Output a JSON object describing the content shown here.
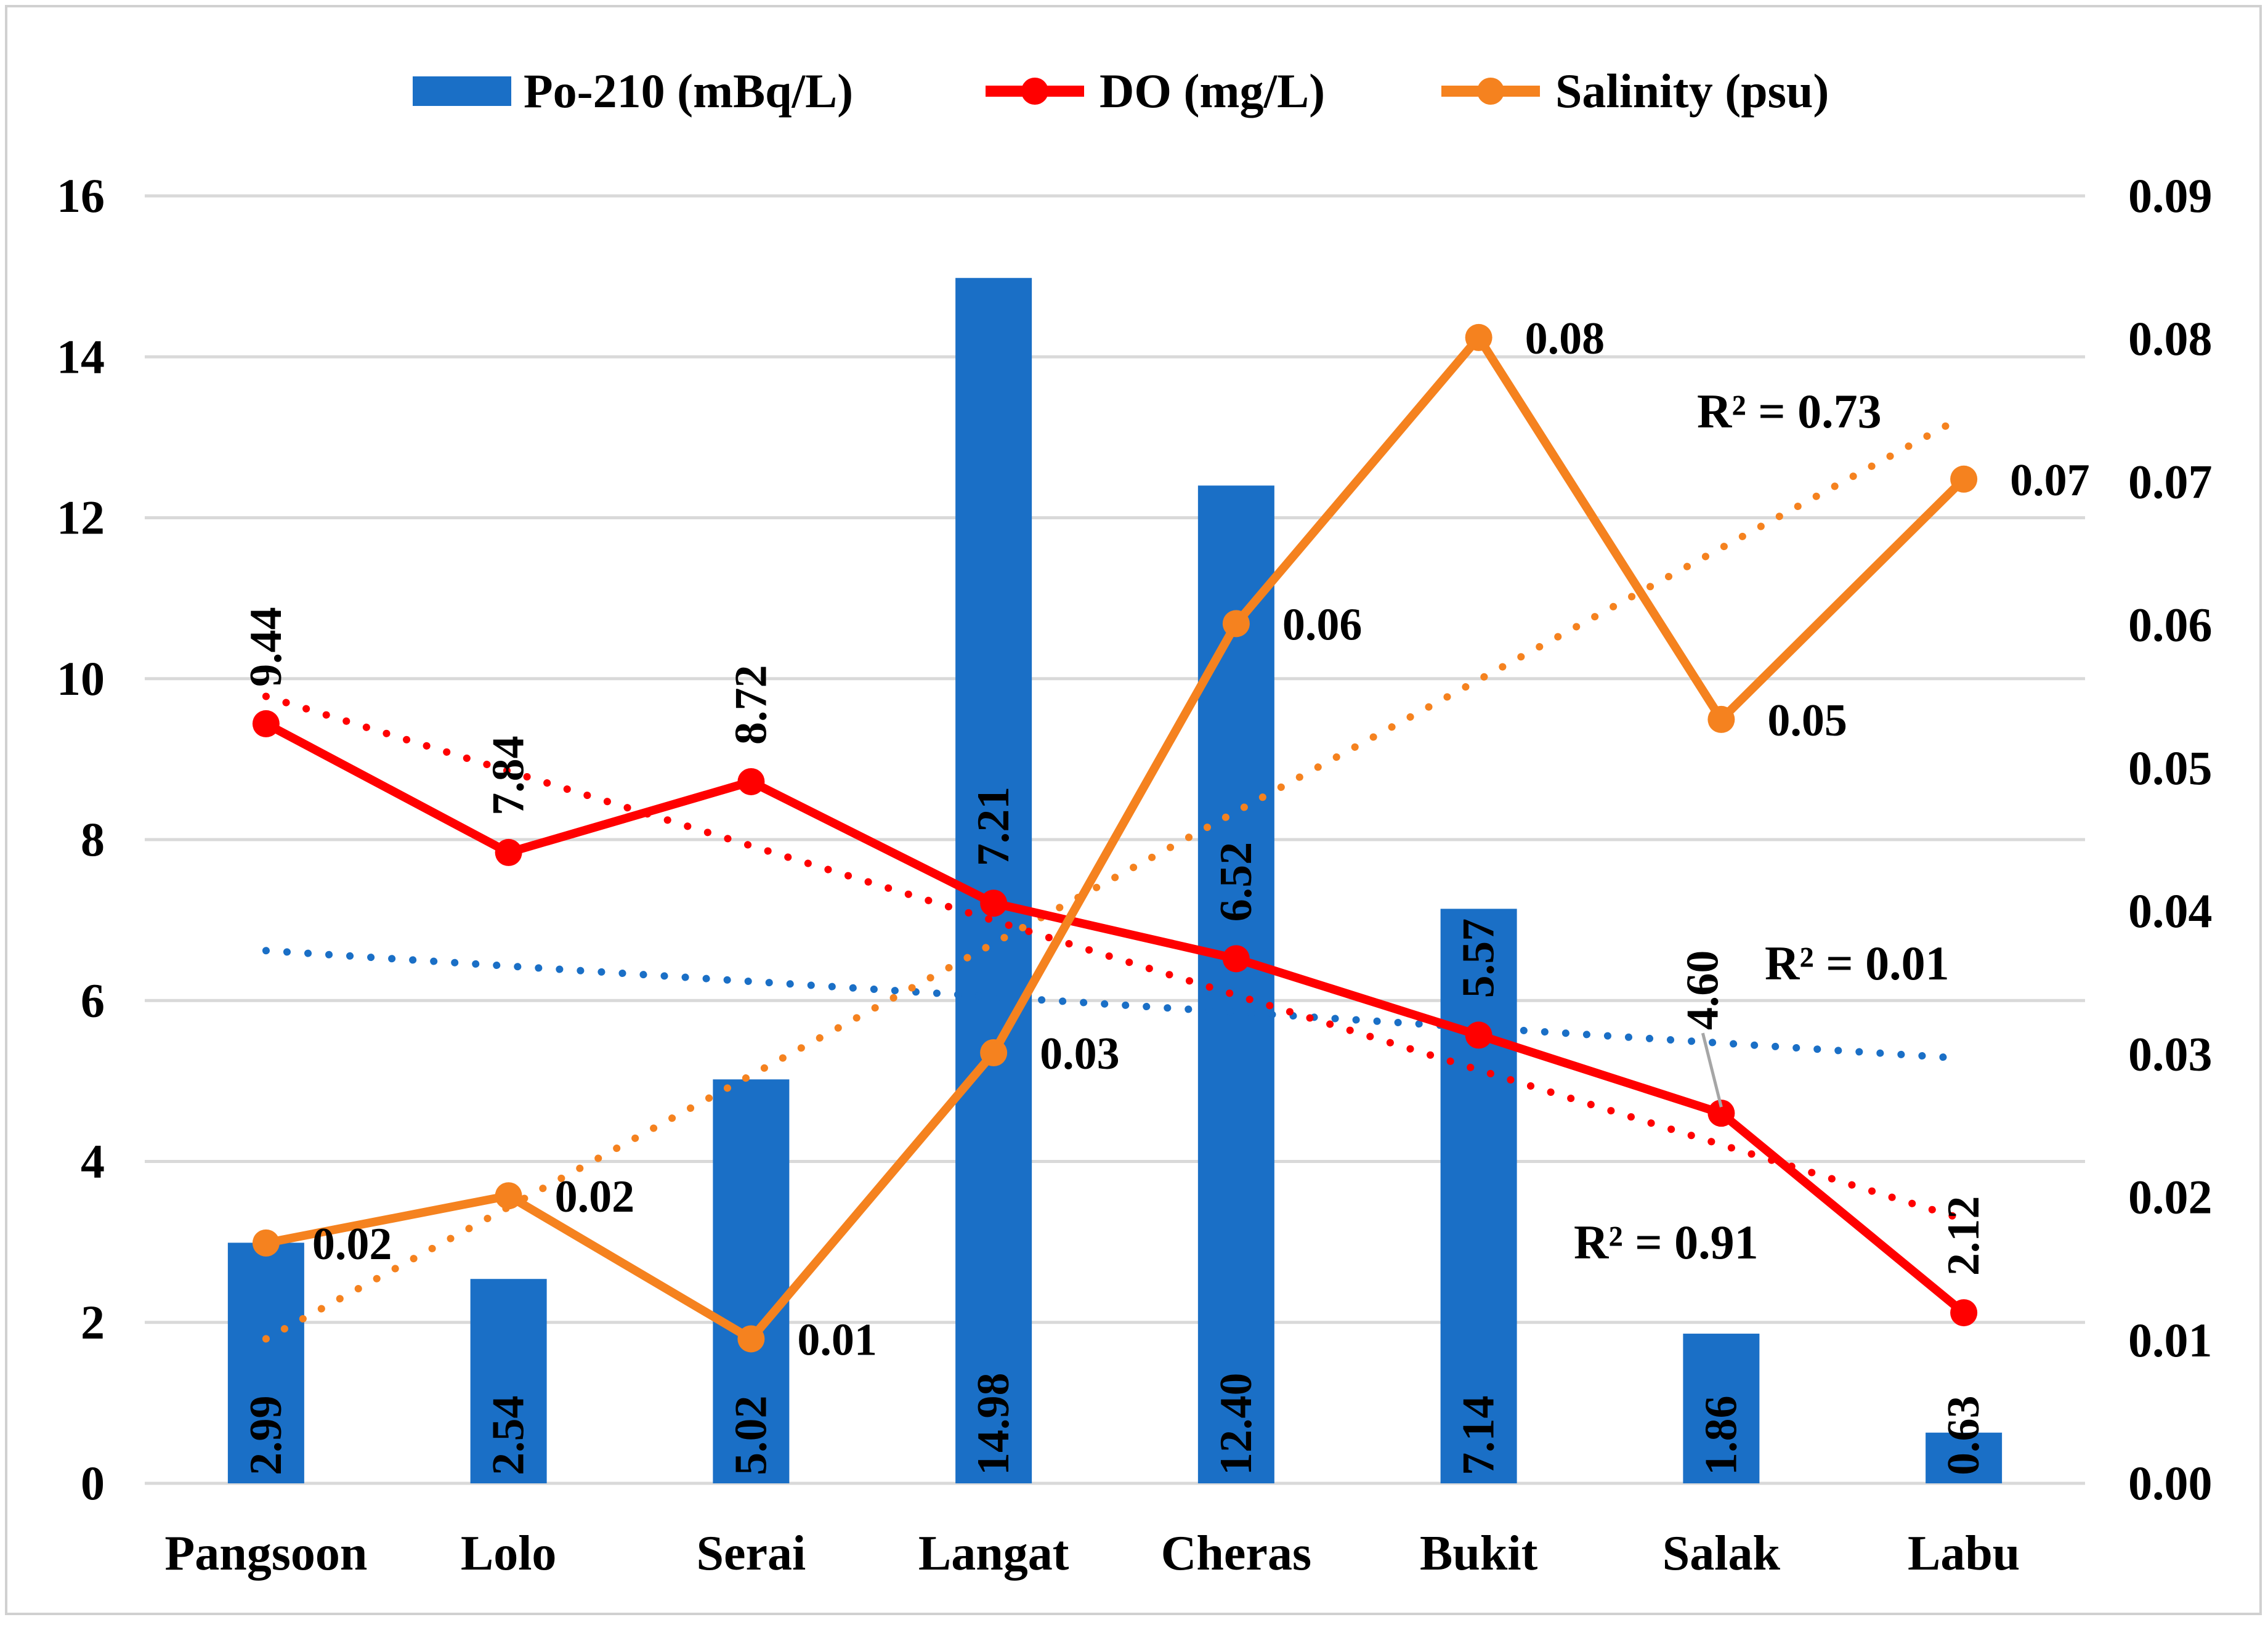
{
  "chart_data": {
    "type": "bar",
    "categories": [
      "Pangsoon",
      "Lolo",
      "Serai",
      "Langat",
      "Cheras",
      "Bukit",
      "Salak",
      "Labu"
    ],
    "series": [
      {
        "name": "Po-210 (mBq/L)",
        "type": "bar",
        "axis": "left",
        "color": "#1a6fc6",
        "values": [
          2.99,
          2.54,
          5.02,
          14.98,
          12.4,
          7.14,
          1.86,
          0.63
        ],
        "labels": [
          "2.99",
          "2.54",
          "5.02",
          "14.98",
          "12.40",
          "7.14",
          "1.86",
          "0.63"
        ]
      },
      {
        "name": "DO (mg/L)",
        "type": "line",
        "axis": "left",
        "color": "#ff0000",
        "values": [
          9.44,
          7.84,
          8.72,
          7.21,
          6.52,
          5.57,
          4.6,
          2.12
        ],
        "labels": [
          "9.44",
          "7.84",
          "8.72",
          "7.21",
          "6.52",
          "5.57",
          "4.60",
          "2.12"
        ]
      },
      {
        "name": "Salinity (psu)",
        "type": "line",
        "axis": "right",
        "color": "#f5821f",
        "values": [
          0.0168,
          0.0201,
          0.0101,
          0.0301,
          0.0601,
          0.0801,
          0.0534,
          0.0702
        ],
        "labels": [
          "0.02",
          "0.02",
          "0.01",
          "0.03",
          "0.06",
          "0.08",
          "0.05",
          "0.07"
        ]
      }
    ],
    "trendlines": [
      {
        "series": "Po-210 (mBq/L)",
        "color": "#1a6fc6",
        "start": 6.62,
        "end": 5.28,
        "r2_label": "R² = 0.01"
      },
      {
        "series": "DO (mg/L)",
        "color": "#ff0000",
        "start": 9.78,
        "end": 3.28,
        "r2_label": "R² = 0.91"
      },
      {
        "series": "Salinity (psu)",
        "color": "#f5821f",
        "start": 0.0101,
        "end": 0.0746,
        "r2_label": "R² = 0.73"
      }
    ],
    "axes": {
      "left": {
        "ylim": [
          0,
          16
        ],
        "ticks": [
          "0",
          "2",
          "4",
          "6",
          "8",
          "10",
          "12",
          "14",
          "16"
        ]
      },
      "right": {
        "ylim": [
          0,
          0.09
        ],
        "ticks": [
          "0.00",
          "0.01",
          "0.02",
          "0.03",
          "0.04",
          "0.05",
          "0.06",
          "0.07",
          "0.08",
          "0.09"
        ]
      }
    },
    "title": "",
    "xlabel": "",
    "ylabel": "",
    "legend": {
      "position": "top-center",
      "entries": [
        "Po-210 (mBq/L)",
        "DO (mg/L)",
        "Salinity (psu)"
      ]
    },
    "grid": true
  }
}
